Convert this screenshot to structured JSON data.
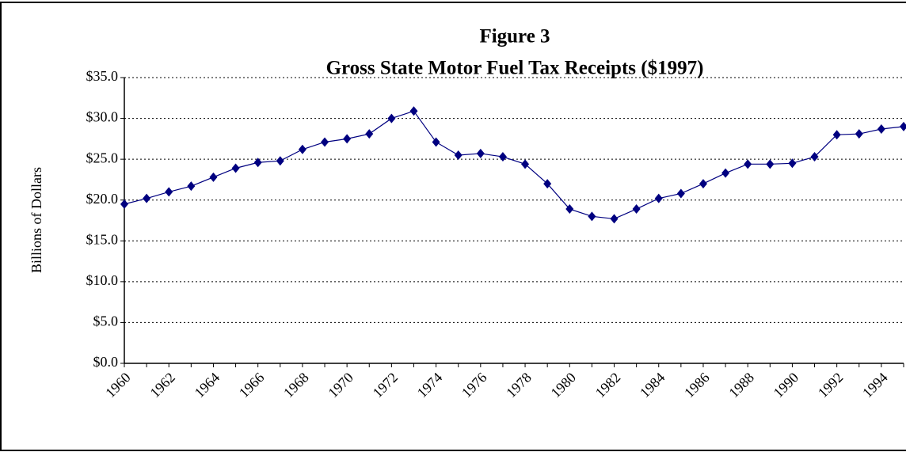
{
  "chart_data": {
    "type": "line",
    "title": "Figure 3",
    "subtitle": "Gross State Motor Fuel Tax Receipts ($1997)",
    "y_label": "Billions of Dollars",
    "categories": [
      "1960",
      null,
      "1962",
      null,
      "1964",
      null,
      "1966",
      null,
      "1968",
      null,
      "1970",
      null,
      "1972",
      null,
      "1974",
      null,
      "1976",
      null,
      "1978",
      null,
      "1980",
      null,
      "1982",
      null,
      "1984",
      null,
      "1986",
      null,
      "1988",
      null,
      "1990",
      null,
      "1992",
      null,
      "1994",
      null
    ],
    "series": [
      {
        "color": "#000080",
        "values": [
          19.5,
          20.2,
          21.0,
          21.7,
          22.8,
          23.9,
          24.6,
          24.8,
          26.2,
          27.1,
          27.5,
          28.1,
          30.0,
          30.9,
          27.1,
          25.5,
          25.7,
          25.3,
          24.4,
          22.0,
          18.9,
          18.0,
          17.7,
          18.9,
          20.2,
          20.8,
          22.0,
          23.3,
          24.4,
          24.4,
          24.5,
          25.3,
          28.0,
          28.1,
          28.7,
          29.0
        ]
      }
    ],
    "ylim": [
      0,
      35
    ],
    "yticks": [
      {
        "value": 0,
        "label": "$0.0"
      },
      {
        "value": 5,
        "label": "$5.0"
      },
      {
        "value": 10,
        "label": "$10.0"
      },
      {
        "value": 15,
        "label": "$15.0"
      },
      {
        "value": 20,
        "label": "$20.0"
      },
      {
        "value": 25,
        "label": "$25.0"
      },
      {
        "value": 30,
        "label": "$30.0"
      },
      {
        "value": 35,
        "label": "$35.0"
      }
    ],
    "grid": true
  }
}
